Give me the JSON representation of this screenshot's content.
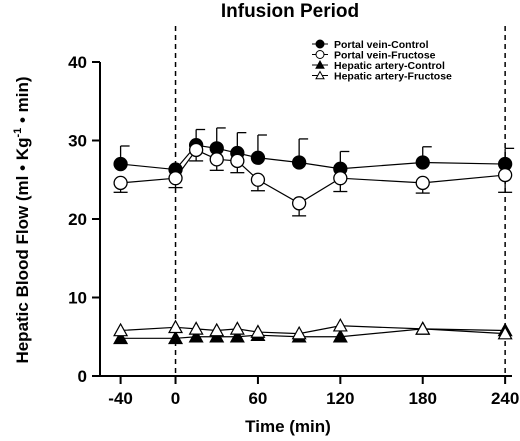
{
  "chart_data": {
    "type": "line",
    "title": "Infusion Period",
    "xlabel": "Time (min)",
    "ylabel": {
      "main": "Hepatic Blood Flow (ml • Kg",
      "sup": "-1",
      "tail": " • min)"
    },
    "x": [
      -40,
      0,
      15,
      30,
      45,
      60,
      90,
      120,
      180,
      240
    ],
    "xticks": [
      -40,
      0,
      60,
      120,
      180,
      240
    ],
    "xtick_labels": [
      "-40",
      "0",
      "60",
      "120",
      "180",
      "240"
    ],
    "xlim": [
      -55,
      245
    ],
    "yticks": [
      0,
      10,
      20,
      30,
      40
    ],
    "ylim": [
      0,
      40
    ],
    "vlines": [
      0,
      240
    ],
    "legend_position": "top-right",
    "series": [
      {
        "name": "Portal vein-Control",
        "marker": "circle",
        "fill": "filled",
        "values": [
          27.0,
          26.3,
          29.4,
          29.0,
          28.4,
          27.8,
          27.2,
          26.4,
          27.2,
          27.0
        ],
        "err_up": [
          2.3,
          0,
          2.0,
          2.6,
          2.6,
          2.9,
          3.0,
          2.2,
          2.0,
          2.0
        ]
      },
      {
        "name": "Portal vein-Fructose",
        "marker": "circle",
        "fill": "open",
        "values": [
          24.6,
          25.2,
          28.8,
          27.6,
          27.4,
          25.0,
          22.0,
          25.2,
          24.6,
          25.6
        ],
        "err_down": [
          1.2,
          1.2,
          1.4,
          1.4,
          1.5,
          1.4,
          1.6,
          1.7,
          1.3,
          2.2
        ]
      },
      {
        "name": "Hepatic artery-Control",
        "marker": "triangle",
        "fill": "filled",
        "values": [
          4.8,
          4.8,
          5.0,
          5.0,
          5.0,
          5.2,
          5.0,
          5.0,
          6.0,
          5.8
        ]
      },
      {
        "name": "Hepatic artery-Fructose",
        "marker": "triangle",
        "fill": "open",
        "values": [
          5.8,
          6.2,
          6.0,
          5.8,
          6.0,
          5.6,
          5.4,
          6.4,
          6.0,
          5.4
        ]
      }
    ]
  }
}
